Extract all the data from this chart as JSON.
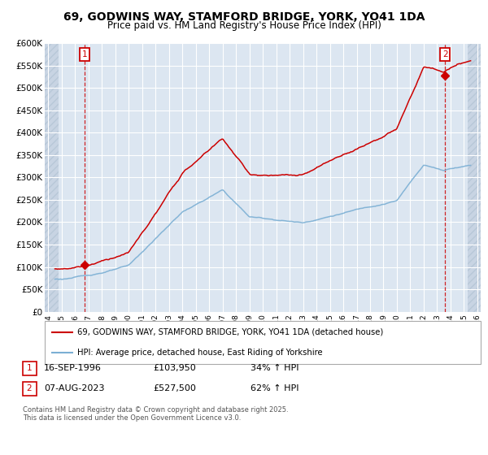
{
  "title": "69, GODWINS WAY, STAMFORD BRIDGE, YORK, YO41 1DA",
  "subtitle": "Price paid vs. HM Land Registry's House Price Index (HPI)",
  "ylim": [
    0,
    600000
  ],
  "xlim_start": 1993.75,
  "xlim_end": 2026.25,
  "bg_color": "#dce6f1",
  "hatch_color": "#c8d4e3",
  "grid_color": "#ffffff",
  "red_line_color": "#cc0000",
  "blue_line_color": "#7bafd4",
  "sale1_year": 1996.71,
  "sale1_price": 103950,
  "sale2_year": 2023.585,
  "sale2_price": 527500,
  "legend_line1": "69, GODWINS WAY, STAMFORD BRIDGE, YORK, YO41 1DA (detached house)",
  "legend_line2": "HPI: Average price, detached house, East Riding of Yorkshire",
  "footer": "Contains HM Land Registry data © Crown copyright and database right 2025.\nThis data is licensed under the Open Government Licence v3.0.",
  "yticks": [
    0,
    50000,
    100000,
    150000,
    200000,
    250000,
    300000,
    350000,
    400000,
    450000,
    500000,
    550000,
    600000
  ],
  "ytick_labels": [
    "£0",
    "£50K",
    "£100K",
    "£150K",
    "£200K",
    "£250K",
    "£300K",
    "£350K",
    "£400K",
    "£450K",
    "£500K",
    "£550K",
    "£600K"
  ],
  "sale1_label": "1",
  "sale2_label": "2",
  "ann1_date": "16-SEP-1996",
  "ann1_price": "£103,950",
  "ann1_hpi": "34% ↑ HPI",
  "ann2_date": "07-AUG-2023",
  "ann2_price": "£527,500",
  "ann2_hpi": "62% ↑ HPI"
}
